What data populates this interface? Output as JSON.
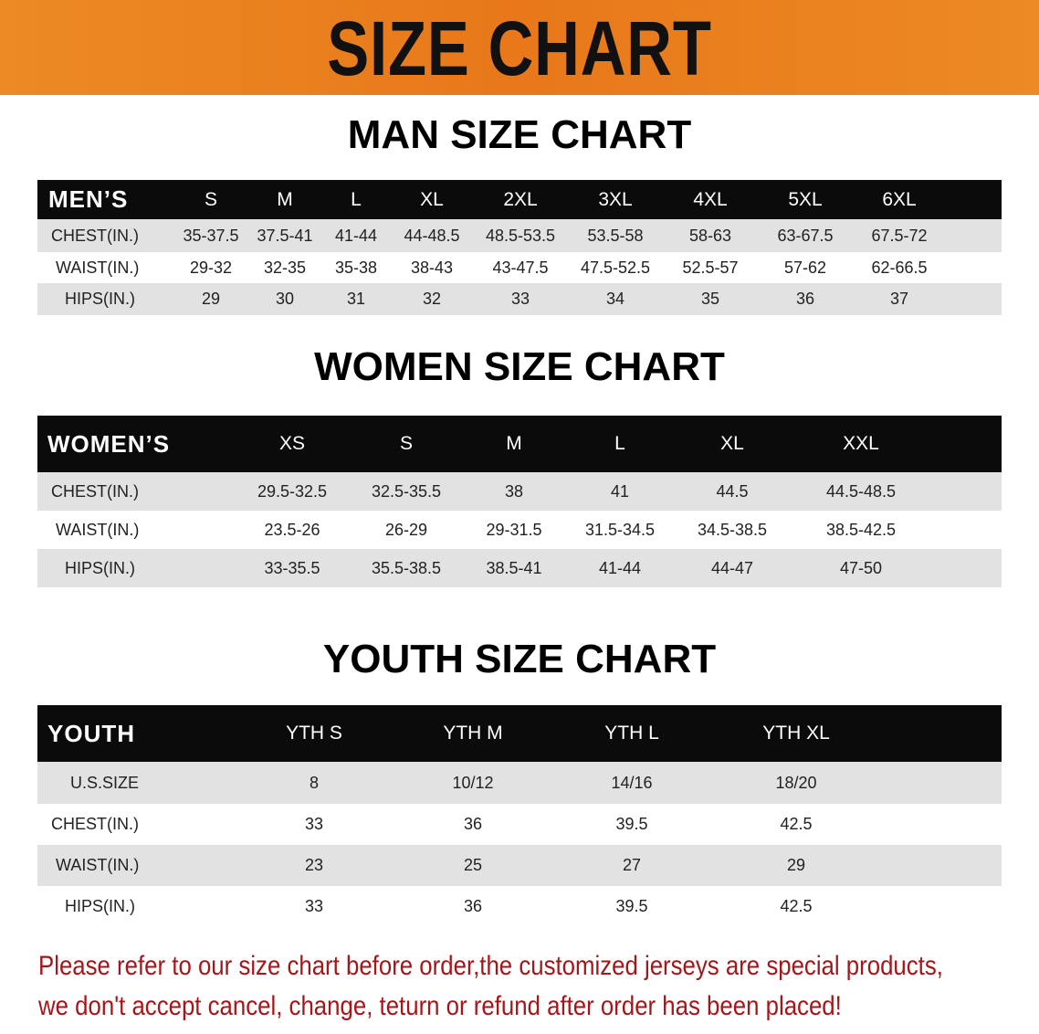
{
  "banner": {
    "title": "SIZE CHART",
    "color": "#e8821e"
  },
  "men": {
    "title": "MAN SIZE CHART",
    "header": [
      "MEN’S",
      "S",
      "M",
      "L",
      "XL",
      "2XL",
      "3XL",
      "4XL",
      "5XL",
      "6XL"
    ],
    "rows": [
      [
        "CHEST(IN.)",
        "35-37.5",
        "37.5-41",
        "41-44",
        "44-48.5",
        "48.5-53.5",
        "53.5-58",
        "58-63",
        "63-67.5",
        "67.5-72"
      ],
      [
        "WAIST(IN.)",
        "29-32",
        "32-35",
        "35-38",
        "38-43",
        "43-47.5",
        "47.5-52.5",
        "52.5-57",
        "57-62",
        "62-66.5"
      ],
      [
        "HIPS(IN.)",
        "29",
        "30",
        "31",
        "32",
        "33",
        "34",
        "35",
        "36",
        "37"
      ]
    ]
  },
  "women": {
    "title": "WOMEN SIZE CHART",
    "header": [
      "WOMEN’S",
      "XS",
      "S",
      "M",
      "L",
      "XL",
      "XXL"
    ],
    "rows": [
      [
        "CHEST(IN.)",
        "29.5-32.5",
        "32.5-35.5",
        "38",
        "41",
        "44.5",
        "44.5-48.5"
      ],
      [
        "WAIST(IN.)",
        "23.5-26",
        "26-29",
        "29-31.5",
        "31.5-34.5",
        "34.5-38.5",
        "38.5-42.5"
      ],
      [
        "HIPS(IN.)",
        "33-35.5",
        "35.5-38.5",
        "38.5-41",
        "41-44",
        "44-47",
        "47-50"
      ]
    ]
  },
  "youth": {
    "title": "YOUTH SIZE CHART",
    "header": [
      "YOUTH",
      "YTH S",
      "YTH M",
      "YTH L",
      "YTH XL"
    ],
    "rows": [
      [
        "U.S.SIZE",
        "8",
        "10/12",
        "14/16",
        "18/20"
      ],
      [
        "CHEST(IN.)",
        "33",
        "36",
        "39.5",
        "42.5"
      ],
      [
        "WAIST(IN.)",
        "23",
        "25",
        "27",
        "29"
      ],
      [
        "HIPS(IN.)",
        "33",
        "36",
        "39.5",
        "42.5"
      ]
    ]
  },
  "notice": {
    "line1": "Please refer to our size chart before order,the customized jerseys are special products,",
    "line2": "we don't accept cancel, change, teturn or refund after order has been placed!",
    "color": "#a4161a"
  }
}
